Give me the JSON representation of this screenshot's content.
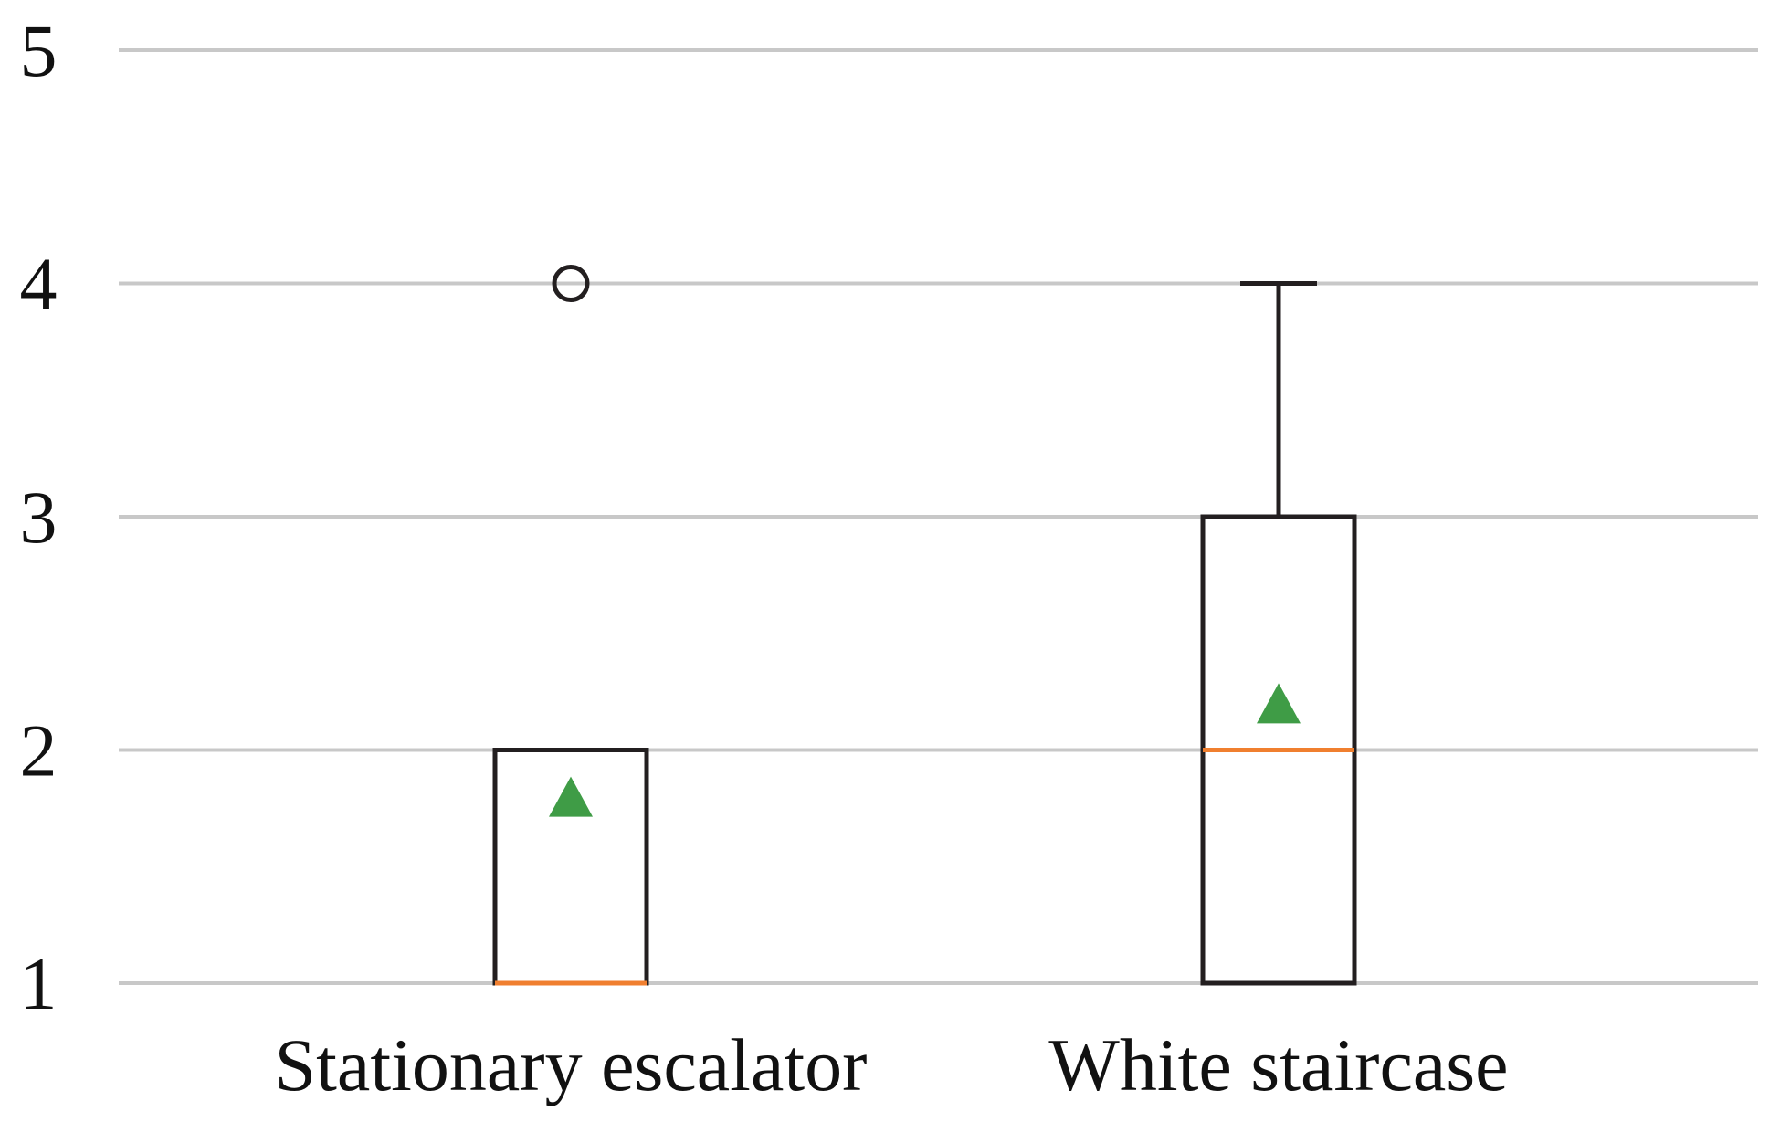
{
  "chart_data": {
    "type": "box",
    "title": "",
    "xlabel": "",
    "ylabel": "",
    "ylim": [
      1,
      5
    ],
    "yticks": [
      "1",
      "2",
      "3",
      "4",
      "5"
    ],
    "grid": "horizontal",
    "categories": [
      "Stationary escalator",
      "White staircase"
    ],
    "series": [
      {
        "category": "Stationary escalator",
        "whisker_low": 1,
        "q1": 1,
        "median": 1,
        "q3": 2,
        "whisker_high": 2,
        "mean": 1.8,
        "outliers": [
          4
        ]
      },
      {
        "category": "White staircase",
        "whisker_low": 1,
        "q1": 1,
        "median": 2,
        "q3": 3,
        "whisker_high": 4,
        "mean": 2.2,
        "outliers": []
      }
    ],
    "colors": {
      "grid": "#c8c8c8",
      "box": "#231f20",
      "median": "#f07f2f",
      "mean_marker": "#3f9c46"
    },
    "marker_shapes": {
      "mean": "triangle",
      "outlier": "circle"
    }
  }
}
